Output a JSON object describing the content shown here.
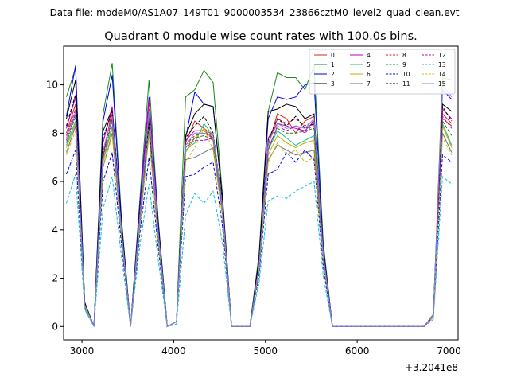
{
  "suptitle": "Data file: modeM0/AS1A07_149T01_9000003534_23866cztM0_level2_quad_clean.evt",
  "chart_data": {
    "type": "line",
    "title": "Quadrant 0 module wise count rates with 100.0s bins.",
    "xlabel": "",
    "ylabel": "",
    "x_offset_label": "+3.2041e8",
    "xlim": [
      2800,
      7100
    ],
    "ylim": [
      -0.55,
      11.6
    ],
    "xticks": [
      3000,
      4000,
      5000,
      6000,
      7000
    ],
    "xtick_labels": [
      "3000",
      "4000",
      "5000",
      "6000",
      "7000"
    ],
    "yticks": [
      0,
      2,
      4,
      6,
      8,
      10
    ],
    "ytick_labels": [
      "0",
      "2",
      "4",
      "6",
      "8",
      "10"
    ],
    "legend_position": "upper right",
    "x": [
      2830,
      2930,
      3030,
      3130,
      3230,
      3330,
      3430,
      3530,
      3630,
      3730,
      3830,
      3930,
      4030,
      4130,
      4230,
      4330,
      4430,
      4530,
      4630,
      4730,
      4830,
      4930,
      5030,
      5130,
      5230,
      5330,
      5430,
      5530,
      5630,
      5730,
      5830,
      5930,
      6030,
      6130,
      6230,
      6330,
      6430,
      6530,
      6630,
      6730,
      6830,
      6930,
      7030
    ],
    "series": [
      {
        "name": "0",
        "color": "#d62020",
        "dash": "solid",
        "values": [
          8.0,
          9.2,
          0.9,
          0.0,
          7.0,
          9.0,
          4.0,
          0.0,
          4.5,
          9.4,
          4.0,
          0.0,
          0.2,
          7.6,
          8.5,
          8.2,
          7.9,
          5.0,
          0.0,
          0.0,
          0.0,
          2.5,
          7.5,
          8.8,
          8.6,
          8.0,
          8.5,
          8.7,
          3.0,
          0.0,
          0.0,
          0.0,
          0.0,
          0.0,
          0.0,
          0.0,
          0.0,
          0.0,
          0.0,
          0.0,
          0.5,
          8.8,
          8.4
        ]
      },
      {
        "name": "1",
        "color": "#1a8a1a",
        "dash": "solid",
        "values": [
          9.5,
          10.7,
          1.0,
          0.0,
          8.8,
          10.9,
          4.5,
          0.0,
          5.2,
          10.2,
          4.5,
          0.0,
          0.2,
          9.5,
          9.8,
          10.6,
          10.1,
          5.5,
          0.0,
          0.0,
          0.0,
          3.0,
          8.9,
          10.5,
          10.3,
          10.3,
          9.8,
          10.8,
          3.5,
          0.0,
          0.0,
          0.0,
          0.0,
          0.0,
          0.0,
          0.0,
          0.0,
          0.0,
          0.0,
          0.0,
          0.5,
          10.3,
          10.2
        ]
      },
      {
        "name": "2",
        "color": "#0000ee",
        "dash": "solid",
        "values": [
          8.7,
          10.8,
          1.0,
          0.0,
          8.5,
          10.4,
          4.4,
          0.0,
          5.0,
          9.5,
          4.4,
          0.0,
          0.2,
          7.8,
          9.7,
          9.2,
          9.1,
          5.4,
          0.0,
          0.0,
          0.0,
          2.8,
          8.6,
          9.5,
          9.4,
          9.5,
          10.0,
          10.1,
          3.3,
          0.0,
          0.0,
          0.0,
          0.0,
          0.0,
          0.0,
          0.0,
          0.0,
          0.0,
          0.0,
          0.0,
          0.5,
          9.8,
          9.4
        ]
      },
      {
        "name": "3",
        "color": "#000000",
        "dash": "solid",
        "values": [
          8.6,
          10.2,
          1.0,
          0.0,
          8.1,
          9.0,
          4.3,
          0.0,
          4.8,
          8.6,
          4.3,
          0.0,
          0.2,
          7.9,
          8.8,
          9.2,
          9.1,
          5.3,
          0.0,
          0.0,
          0.0,
          2.8,
          8.9,
          9.0,
          9.2,
          9.1,
          8.6,
          8.8,
          3.2,
          0.0,
          0.0,
          0.0,
          0.0,
          0.0,
          0.0,
          0.0,
          0.0,
          0.0,
          0.0,
          0.0,
          0.5,
          9.2,
          8.9
        ]
      },
      {
        "name": "4",
        "color": "#bb00bb",
        "dash": "solid",
        "values": [
          8.2,
          9.5,
          0.9,
          0.0,
          7.6,
          9.1,
          4.1,
          0.0,
          4.7,
          9.4,
          4.1,
          0.0,
          0.2,
          7.7,
          8.1,
          8.1,
          7.8,
          5.1,
          0.0,
          0.0,
          0.0,
          2.6,
          7.8,
          8.4,
          8.3,
          8.2,
          8.1,
          8.5,
          3.1,
          0.0,
          0.0,
          0.0,
          0.0,
          0.0,
          0.0,
          0.0,
          0.0,
          0.0,
          0.0,
          0.0,
          0.5,
          9.0,
          8.6
        ]
      },
      {
        "name": "5",
        "color": "#1fbf8f",
        "dash": "solid",
        "values": [
          7.5,
          8.5,
          0.9,
          0.0,
          6.9,
          8.3,
          3.9,
          0.0,
          4.3,
          8.2,
          3.8,
          0.0,
          0.2,
          7.3,
          7.6,
          8.4,
          7.9,
          4.8,
          0.0,
          0.0,
          0.0,
          2.4,
          7.3,
          8.1,
          7.8,
          7.5,
          7.7,
          7.9,
          2.9,
          0.0,
          0.0,
          0.0,
          0.0,
          0.0,
          0.0,
          0.0,
          0.0,
          0.0,
          0.0,
          0.0,
          0.4,
          8.4,
          7.5
        ]
      },
      {
        "name": "6",
        "color": "#c8a800",
        "dash": "solid",
        "values": [
          7.4,
          8.4,
          0.9,
          0.0,
          6.8,
          8.2,
          3.8,
          0.0,
          4.2,
          8.1,
          3.7,
          0.0,
          0.2,
          7.2,
          7.8,
          8.2,
          7.7,
          4.7,
          0.0,
          0.0,
          0.0,
          2.4,
          7.1,
          7.9,
          7.6,
          7.4,
          7.6,
          7.7,
          2.8,
          0.0,
          0.0,
          0.0,
          0.0,
          0.0,
          0.0,
          0.0,
          0.0,
          0.0,
          0.0,
          0.0,
          0.4,
          8.3,
          7.4
        ]
      },
      {
        "name": "7",
        "color": "#707070",
        "dash": "solid",
        "values": [
          7.2,
          8.3,
          0.8,
          0.0,
          6.6,
          8.0,
          3.7,
          0.0,
          4.1,
          8.0,
          3.6,
          0.0,
          0.2,
          6.9,
          7.0,
          7.2,
          7.4,
          4.6,
          0.0,
          0.0,
          0.0,
          2.3,
          6.9,
          7.5,
          7.3,
          7.1,
          7.2,
          7.3,
          2.7,
          0.0,
          0.0,
          0.0,
          0.0,
          0.0,
          0.0,
          0.0,
          0.0,
          0.0,
          0.0,
          0.0,
          0.4,
          8.0,
          7.2
        ]
      },
      {
        "name": "8",
        "color": "#d62020",
        "dash": "dashed",
        "values": [
          7.9,
          9.0,
          0.9,
          0.0,
          7.2,
          8.8,
          4.0,
          0.0,
          4.5,
          9.0,
          4.0,
          0.0,
          0.2,
          7.5,
          7.9,
          8.0,
          7.8,
          5.0,
          0.0,
          0.0,
          0.0,
          2.5,
          7.5,
          8.6,
          8.4,
          8.6,
          8.3,
          8.5,
          3.0,
          0.0,
          0.0,
          0.0,
          0.0,
          0.0,
          0.0,
          0.0,
          0.0,
          0.0,
          0.0,
          0.0,
          0.5,
          8.6,
          8.3
        ]
      },
      {
        "name": "9",
        "color": "#1a8a1a",
        "dash": "dashed",
        "values": [
          7.6,
          8.7,
          0.9,
          0.0,
          7.0,
          8.5,
          3.9,
          0.0,
          4.4,
          8.7,
          3.9,
          0.0,
          0.2,
          7.4,
          7.8,
          7.9,
          7.7,
          4.9,
          0.0,
          0.0,
          0.0,
          2.5,
          7.4,
          8.2,
          8.0,
          8.0,
          8.1,
          8.2,
          2.9,
          0.0,
          0.0,
          0.0,
          0.0,
          0.0,
          0.0,
          0.0,
          0.0,
          0.0,
          0.0,
          0.0,
          0.4,
          8.5,
          7.9
        ]
      },
      {
        "name": "10",
        "color": "#0000ee",
        "dash": "dashed",
        "values": [
          6.3,
          7.3,
          0.8,
          0.0,
          6.0,
          7.2,
          3.4,
          0.0,
          3.8,
          7.0,
          3.3,
          0.0,
          0.2,
          6.2,
          6.3,
          6.6,
          6.8,
          4.2,
          0.0,
          0.0,
          0.0,
          2.1,
          6.3,
          6.5,
          7.2,
          6.8,
          7.3,
          6.9,
          2.5,
          0.0,
          0.0,
          0.0,
          0.0,
          0.0,
          0.0,
          0.0,
          0.0,
          0.0,
          0.0,
          0.0,
          0.4,
          7.1,
          6.8
        ]
      },
      {
        "name": "11",
        "color": "#000000",
        "dash": "dashed",
        "values": [
          8.3,
          9.6,
          0.9,
          0.0,
          7.8,
          8.9,
          4.2,
          0.0,
          4.7,
          8.4,
          4.2,
          0.0,
          0.2,
          7.8,
          8.3,
          8.7,
          8.0,
          5.1,
          0.0,
          0.0,
          0.0,
          2.7,
          7.7,
          8.6,
          8.3,
          8.7,
          8.2,
          8.4,
          3.1,
          0.0,
          0.0,
          0.0,
          0.0,
          0.0,
          0.0,
          0.0,
          0.0,
          0.0,
          0.0,
          0.0,
          0.5,
          9.1,
          8.5
        ]
      },
      {
        "name": "12",
        "color": "#bb00bb",
        "dash": "dashed",
        "values": [
          7.7,
          8.8,
          0.9,
          0.0,
          7.1,
          8.6,
          3.9,
          0.0,
          4.4,
          8.8,
          3.9,
          0.0,
          0.2,
          7.4,
          7.7,
          7.7,
          7.8,
          4.9,
          0.0,
          0.0,
          0.0,
          2.5,
          7.3,
          8.3,
          8.1,
          8.3,
          8.0,
          8.4,
          2.9,
          0.0,
          0.0,
          0.0,
          0.0,
          0.0,
          0.0,
          0.0,
          0.0,
          0.0,
          0.0,
          0.0,
          0.4,
          8.7,
          8.2
        ]
      },
      {
        "name": "13",
        "color": "#17becf",
        "dash": "dashed",
        "values": [
          5.1,
          6.3,
          0.7,
          0.0,
          4.9,
          6.2,
          2.9,
          0.0,
          3.3,
          5.9,
          2.8,
          0.0,
          0.1,
          4.6,
          5.5,
          5.1,
          5.6,
          3.5,
          0.0,
          0.0,
          0.0,
          1.8,
          5.2,
          5.4,
          5.3,
          5.6,
          5.8,
          6.0,
          2.1,
          0.0,
          0.0,
          0.0,
          0.0,
          0.0,
          0.0,
          0.0,
          0.0,
          0.0,
          0.0,
          0.0,
          0.3,
          6.2,
          5.9
        ]
      },
      {
        "name": "14",
        "color": "#bcbd22",
        "dash": "dashed",
        "values": [
          7.1,
          8.1,
          0.8,
          0.0,
          6.6,
          7.9,
          3.7,
          0.0,
          4.1,
          7.9,
          3.6,
          0.0,
          0.2,
          6.8,
          7.4,
          8.2,
          7.3,
          4.6,
          0.0,
          0.0,
          0.0,
          2.3,
          6.8,
          7.6,
          7.1,
          7.3,
          6.8,
          7.0,
          2.7,
          0.0,
          0.0,
          0.0,
          0.0,
          0.0,
          0.0,
          0.0,
          0.0,
          0.0,
          0.0,
          0.0,
          0.4,
          7.8,
          7.1
        ]
      },
      {
        "name": "15",
        "color": "#8080ee",
        "dash": "solid",
        "values": [
          7.8,
          8.9,
          0.9,
          0.0,
          7.3,
          8.7,
          4.0,
          0.0,
          4.5,
          8.9,
          4.0,
          0.0,
          0.2,
          7.5,
          8.0,
          8.0,
          7.9,
          5.0,
          0.0,
          0.0,
          0.0,
          2.5,
          7.6,
          8.4,
          8.2,
          8.3,
          8.2,
          8.6,
          3.0,
          0.0,
          0.0,
          0.0,
          0.0,
          0.0,
          0.0,
          0.0,
          0.0,
          0.0,
          0.0,
          0.0,
          0.5,
          10.0,
          9.5
        ]
      }
    ]
  }
}
